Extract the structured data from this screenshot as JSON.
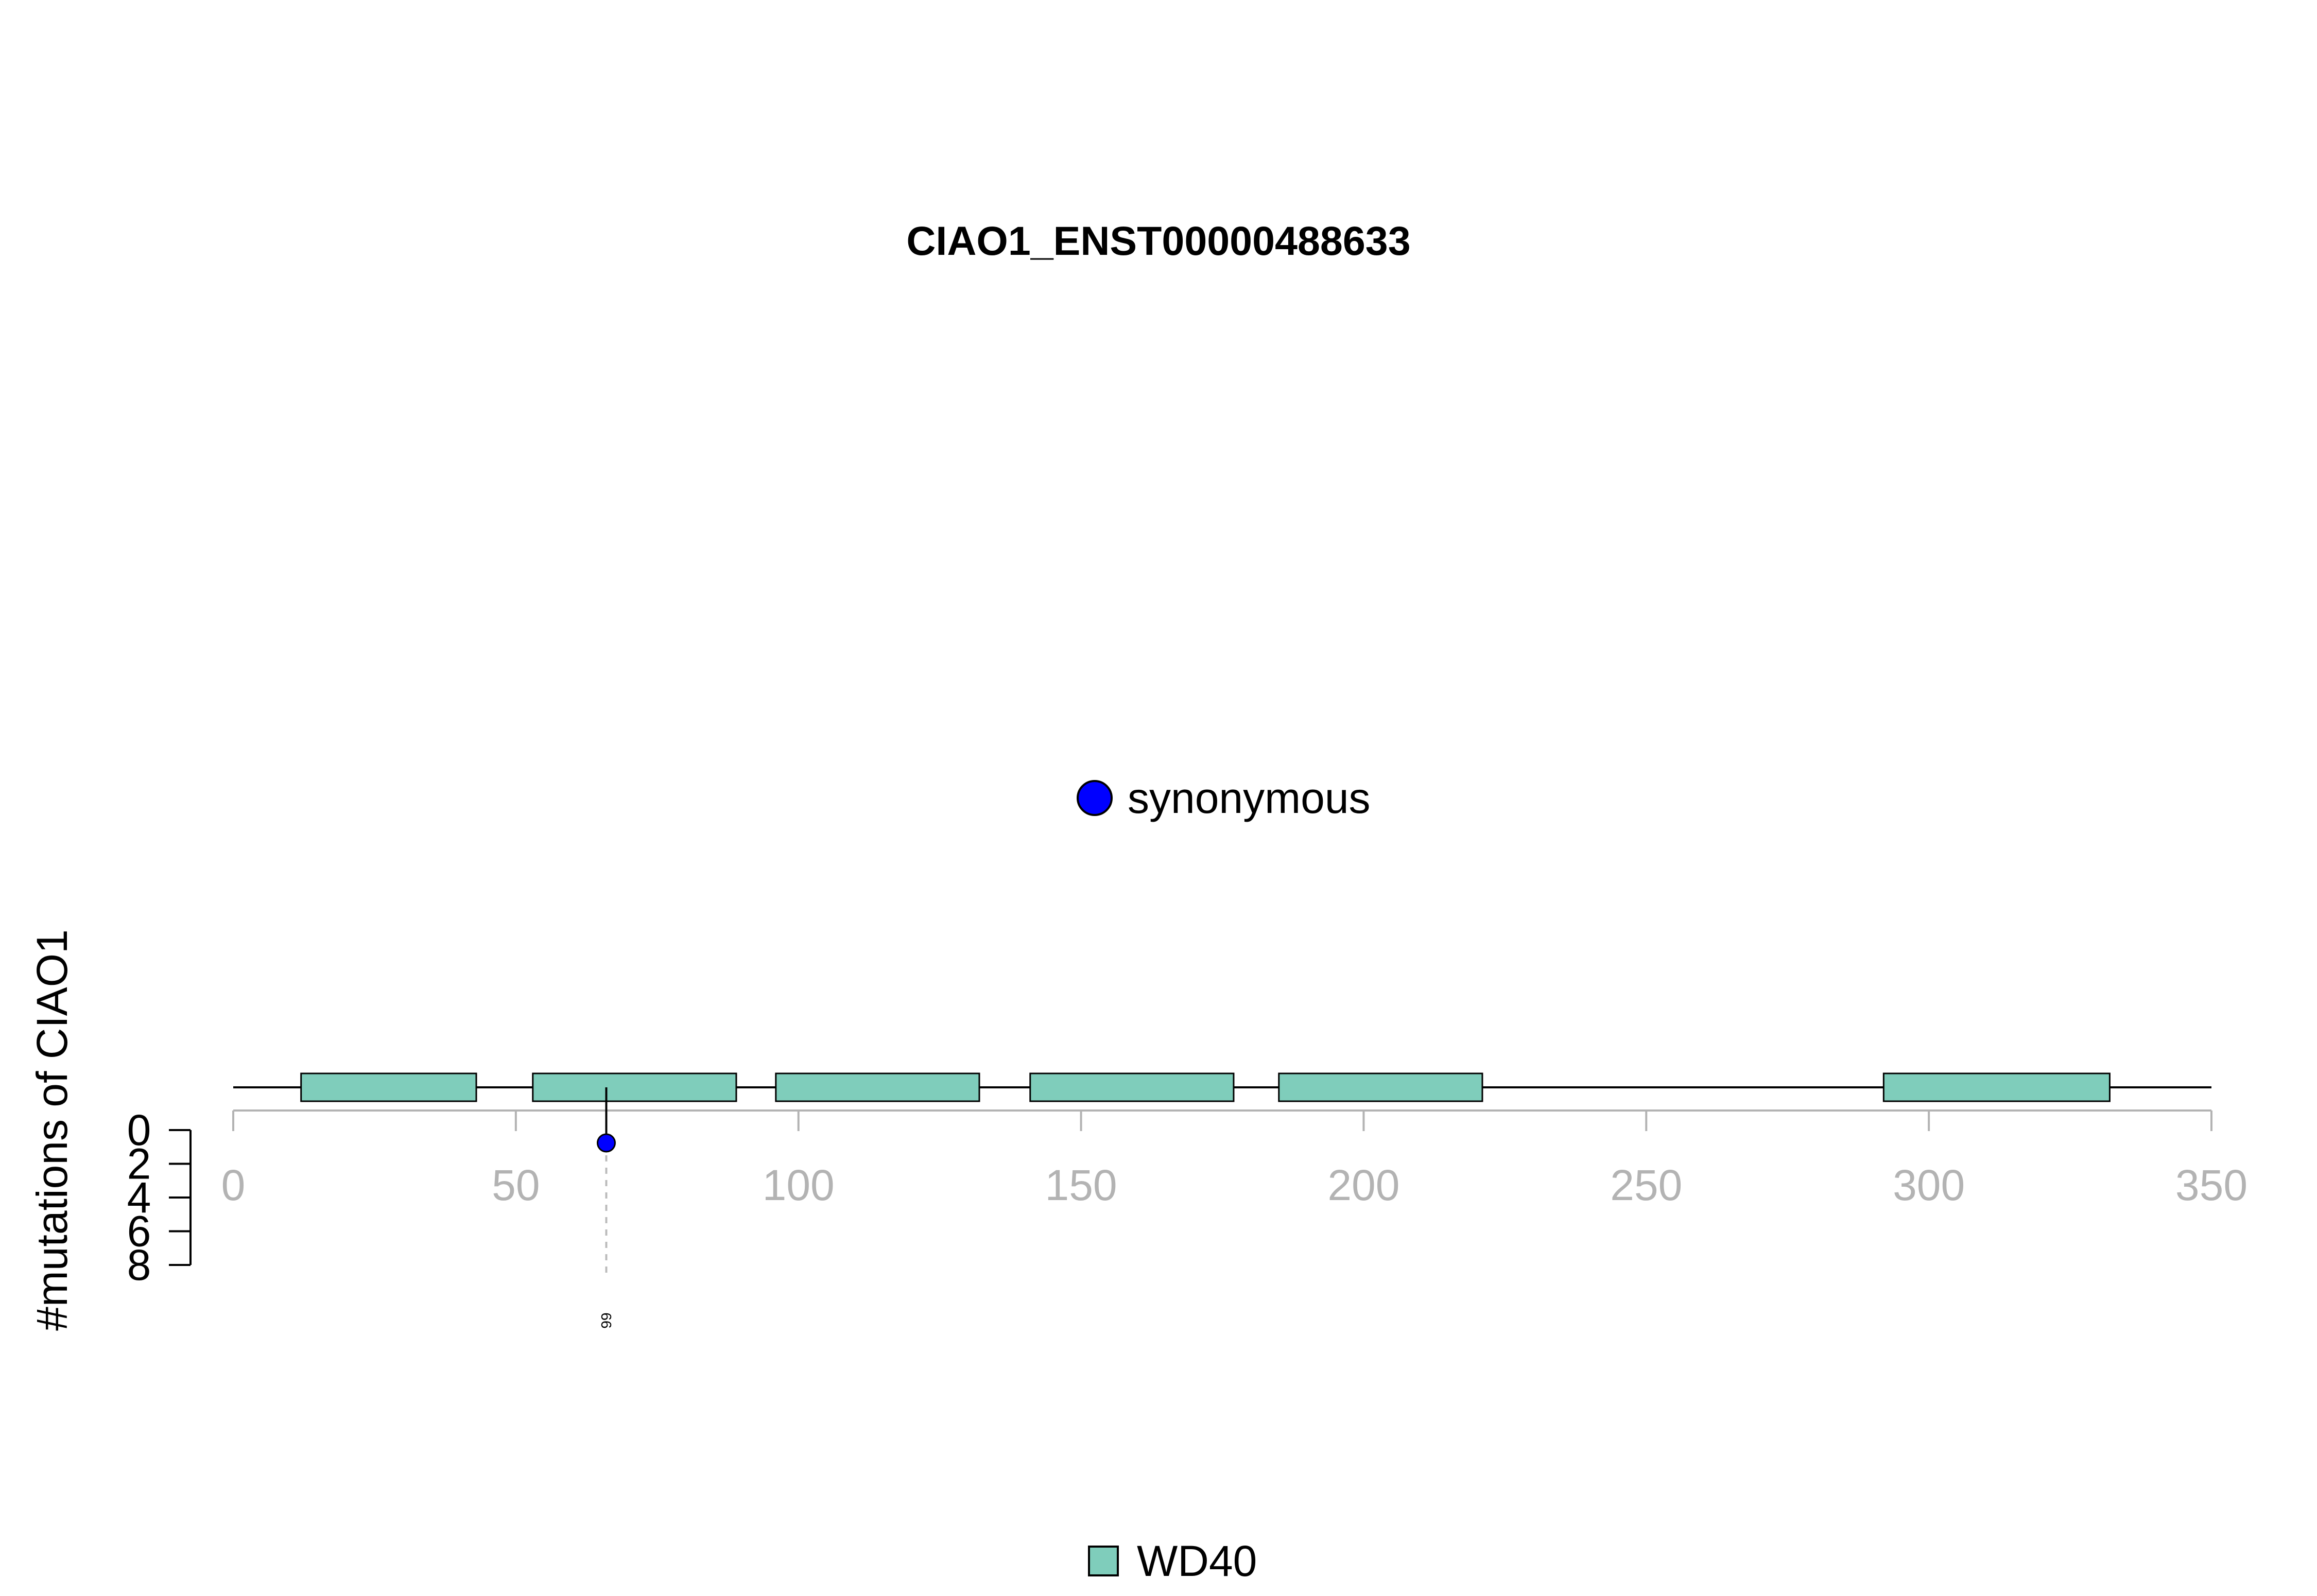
{
  "chart_data": {
    "type": "lollipop",
    "title": "CIAO1_ENST00000488633",
    "ylabel": "#mutations of CIAO1",
    "xlim": [
      0,
      350
    ],
    "x_ticks": [
      0,
      50,
      100,
      150,
      200,
      250,
      300,
      350
    ],
    "y_ticks": [
      0,
      2,
      4,
      6,
      8
    ],
    "ylim": [
      0,
      8
    ],
    "protein_length": 350,
    "domains": [
      {
        "name": "WD40",
        "start": 12,
        "end": 43
      },
      {
        "name": "WD40",
        "start": 53,
        "end": 89
      },
      {
        "name": "WD40",
        "start": 96,
        "end": 132
      },
      {
        "name": "WD40",
        "start": 141,
        "end": 177
      },
      {
        "name": "WD40",
        "start": 185,
        "end": 221
      },
      {
        "name": "WD40",
        "start": 292,
        "end": 332
      }
    ],
    "mutations": [
      {
        "position": 66,
        "count": 1,
        "type": "synonymous",
        "label": "66"
      }
    ],
    "mutation_legend": [
      {
        "label": "synonymous",
        "color": "#0000ff"
      }
    ],
    "domain_legend": [
      {
        "label": "WD40",
        "color": "#7fcdbb"
      }
    ]
  }
}
